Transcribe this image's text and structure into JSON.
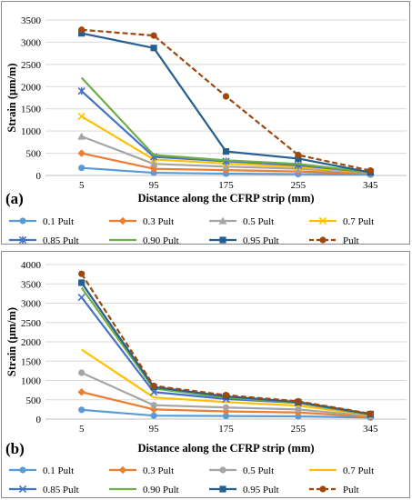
{
  "chart_data": [
    {
      "type": "line",
      "panel_label": "(a)",
      "xlabel": "Distance along the CFRP strip (mm)",
      "ylabel": "Strain (μm/m)",
      "categories": [
        "5",
        "95",
        "175",
        "255",
        "345"
      ],
      "ylim": [
        0,
        3500
      ],
      "yticks": [
        0,
        500,
        1000,
        1500,
        2000,
        2500,
        3000,
        3500
      ],
      "grid": true,
      "legend_position": "bottom",
      "series": [
        {
          "name": "0.1 Pult",
          "color": "#5b9bd5",
          "marker": "circle",
          "dash": false,
          "values": [
            170,
            60,
            40,
            30,
            20
          ]
        },
        {
          "name": "0.3 Pult",
          "color": "#ed7d31",
          "marker": "diamond",
          "dash": false,
          "values": [
            500,
            150,
            120,
            90,
            40
          ]
        },
        {
          "name": "0.5 Pult",
          "color": "#a5a5a5",
          "marker": "triangle",
          "dash": false,
          "values": [
            880,
            260,
            200,
            150,
            60
          ]
        },
        {
          "name": "0.7 Pult",
          "color": "#ffc000",
          "marker": "x",
          "dash": false,
          "values": [
            1330,
            360,
            270,
            190,
            70
          ]
        },
        {
          "name": "0.85 Pult",
          "color": "#4472c4",
          "marker": "star",
          "dash": false,
          "values": [
            1900,
            420,
            320,
            230,
            70
          ]
        },
        {
          "name": "0.90 Pult",
          "color": "#70ad47",
          "marker": "none",
          "dash": false,
          "values": [
            2200,
            460,
            340,
            260,
            70
          ]
        },
        {
          "name": "0.95 Pult",
          "color": "#255e91",
          "marker": "square",
          "dash": false,
          "values": [
            3200,
            2870,
            540,
            380,
            70
          ]
        },
        {
          "name": "Pult",
          "color": "#9e480e",
          "marker": "circle",
          "dash": true,
          "values": [
            3280,
            3150,
            1780,
            460,
            110
          ]
        }
      ]
    },
    {
      "type": "line",
      "panel_label": "(b)",
      "xlabel": "Distance along the CFRP strip (mm)",
      "ylabel": "Strain (μm/m)",
      "categories": [
        "5",
        "95",
        "175",
        "255",
        "345"
      ],
      "ylim": [
        0,
        4000
      ],
      "yticks": [
        0,
        500,
        1000,
        1500,
        2000,
        2500,
        3000,
        3500,
        4000
      ],
      "grid": true,
      "legend_position": "bottom",
      "series": [
        {
          "name": "0.1 Pult",
          "color": "#5b9bd5",
          "marker": "circle",
          "dash": false,
          "values": [
            240,
            90,
            80,
            70,
            40
          ]
        },
        {
          "name": "0.3 Pult",
          "color": "#ed7d31",
          "marker": "diamond",
          "dash": false,
          "values": [
            700,
            250,
            200,
            170,
            60
          ]
        },
        {
          "name": "0.5 Pult",
          "color": "#a5a5a5",
          "marker": "circle",
          "dash": false,
          "values": [
            1200,
            360,
            300,
            250,
            80
          ]
        },
        {
          "name": "0.7 Pult",
          "color": "#ffc000",
          "marker": "none",
          "dash": false,
          "values": [
            1800,
            560,
            440,
            350,
            100
          ]
        },
        {
          "name": "0.85 Pult",
          "color": "#4472c4",
          "marker": "x",
          "dash": false,
          "values": [
            3150,
            700,
            520,
            420,
            110
          ]
        },
        {
          "name": "0.90 Pult",
          "color": "#70ad47",
          "marker": "none",
          "dash": false,
          "values": [
            3400,
            790,
            560,
            430,
            110
          ]
        },
        {
          "name": "0.95 Pult",
          "color": "#255e91",
          "marker": "square",
          "dash": false,
          "values": [
            3530,
            830,
            590,
            440,
            130
          ]
        },
        {
          "name": "Pult",
          "color": "#9e480e",
          "marker": "circle",
          "dash": true,
          "values": [
            3760,
            860,
            620,
            460,
            140
          ]
        }
      ]
    }
  ]
}
